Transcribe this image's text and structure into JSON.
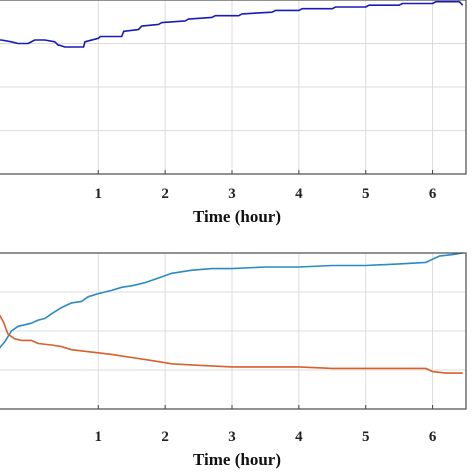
{
  "chart_data": [
    {
      "type": "line",
      "xlabel": "Time (hour)",
      "ylabel": "",
      "xlim": [
        -0.5,
        6.5
      ],
      "ylim": [
        0,
        1
      ],
      "x_ticks": [
        1,
        2,
        3,
        4,
        5,
        6
      ],
      "grid": true,
      "series": [
        {
          "color": "#1a1ab8",
          "x": [
            -0.5,
            -0.45,
            -0.3,
            -0.2,
            -0.05,
            0.05,
            0.2,
            0.35,
            0.4,
            0.42,
            0.5,
            0.6,
            0.7,
            0.75,
            0.78,
            0.8,
            1.0,
            1.03,
            1.2,
            1.35,
            1.38,
            1.6,
            1.65,
            1.9,
            1.95,
            2.3,
            2.35,
            2.7,
            2.75,
            3.1,
            3.15,
            3.6,
            3.65,
            4.0,
            4.05,
            4.5,
            4.55,
            5.0,
            5.05,
            5.5,
            5.55,
            6.0,
            6.05,
            6.4,
            6.45
          ],
          "y": [
            0.77,
            0.77,
            0.76,
            0.75,
            0.75,
            0.77,
            0.77,
            0.76,
            0.74,
            0.74,
            0.73,
            0.73,
            0.73,
            0.73,
            0.73,
            0.76,
            0.78,
            0.79,
            0.79,
            0.79,
            0.82,
            0.83,
            0.85,
            0.86,
            0.87,
            0.88,
            0.89,
            0.9,
            0.91,
            0.91,
            0.92,
            0.93,
            0.94,
            0.94,
            0.95,
            0.95,
            0.96,
            0.96,
            0.97,
            0.97,
            0.98,
            0.98,
            0.99,
            0.99,
            0.97
          ]
        }
      ]
    },
    {
      "type": "line",
      "xlabel": "Time (hour)",
      "ylabel": "",
      "xlim": [
        -0.5,
        6.5
      ],
      "ylim": [
        0,
        1
      ],
      "x_ticks": [
        1,
        2,
        3,
        4,
        5,
        6
      ],
      "grid": true,
      "series": [
        {
          "color": "#2a8ac4",
          "x": [
            -0.5,
            -0.4,
            -0.3,
            -0.2,
            -0.1,
            0.0,
            0.1,
            0.2,
            0.3,
            0.45,
            0.6,
            0.75,
            0.85,
            1.0,
            1.2,
            1.35,
            1.5,
            1.7,
            1.9,
            2.1,
            2.4,
            2.7,
            3.0,
            3.5,
            4.0,
            4.5,
            5.0,
            5.5,
            5.9,
            6.0,
            6.1,
            6.3,
            6.45
          ],
          "y": [
            0.38,
            0.43,
            0.5,
            0.53,
            0.54,
            0.55,
            0.57,
            0.58,
            0.61,
            0.65,
            0.68,
            0.69,
            0.72,
            0.74,
            0.76,
            0.78,
            0.79,
            0.81,
            0.84,
            0.87,
            0.89,
            0.9,
            0.9,
            0.91,
            0.91,
            0.92,
            0.92,
            0.93,
            0.94,
            0.96,
            0.98,
            0.99,
            1.0
          ]
        },
        {
          "color": "#d95f2b",
          "x": [
            -0.5,
            -0.42,
            -0.35,
            -0.25,
            -0.15,
            0.0,
            0.1,
            0.3,
            0.45,
            0.6,
            0.8,
            1.0,
            1.2,
            1.5,
            1.8,
            2.1,
            2.5,
            3.0,
            3.5,
            4.0,
            4.5,
            5.0,
            5.5,
            5.9,
            6.0,
            6.2,
            6.45
          ],
          "y": [
            0.62,
            0.56,
            0.48,
            0.45,
            0.44,
            0.44,
            0.42,
            0.41,
            0.4,
            0.38,
            0.37,
            0.36,
            0.35,
            0.33,
            0.31,
            0.29,
            0.28,
            0.27,
            0.27,
            0.27,
            0.26,
            0.26,
            0.26,
            0.26,
            0.24,
            0.23,
            0.23
          ]
        }
      ]
    }
  ]
}
